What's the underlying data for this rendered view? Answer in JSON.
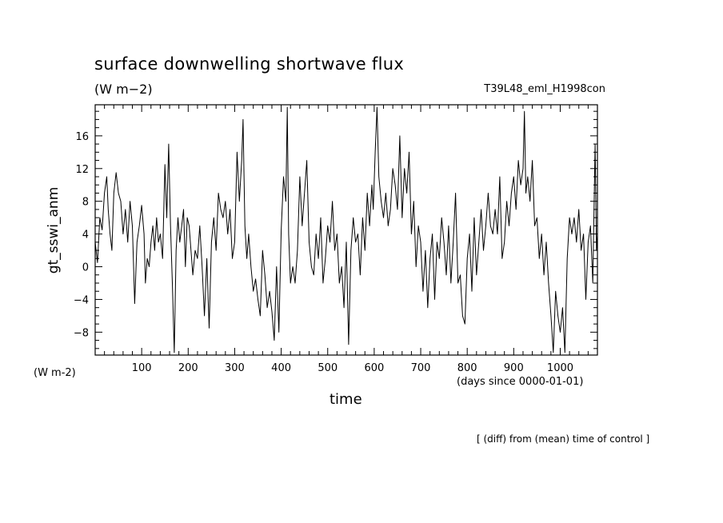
{
  "chart_data": {
    "type": "line",
    "title": "surface downwelling shortwave flux",
    "units": "(W m−2)",
    "experiment": "T39L48_eml_H1998con",
    "ylabel": "gt_sswi_anm",
    "yunit_label": "(W m-2)",
    "xlabel": "time",
    "xunit_label": "(days since 0000-01-01)",
    "note": "[ (diff) from (mean) time of control ]",
    "xlim": [
      0,
      1080
    ],
    "ylim": [
      -10.8,
      19.8
    ],
    "xticks": [
      100,
      200,
      300,
      400,
      500,
      600,
      700,
      800,
      900,
      1000
    ],
    "yticks": [
      -8,
      -4,
      0,
      4,
      8,
      12,
      16
    ],
    "grid": false,
    "series": [
      {
        "color": "#000000",
        "points": [
          [
            0,
            3
          ],
          [
            5,
            0.5
          ],
          [
            10,
            6
          ],
          [
            15,
            4.5
          ],
          [
            20,
            9
          ],
          [
            25,
            11
          ],
          [
            28,
            7
          ],
          [
            32,
            4
          ],
          [
            36,
            2
          ],
          [
            40,
            9
          ],
          [
            45,
            11.5
          ],
          [
            50,
            9
          ],
          [
            55,
            8
          ],
          [
            60,
            4
          ],
          [
            65,
            7
          ],
          [
            70,
            3
          ],
          [
            75,
            8
          ],
          [
            80,
            5
          ],
          [
            85,
            -4.5
          ],
          [
            90,
            3
          ],
          [
            95,
            5
          ],
          [
            100,
            7.5
          ],
          [
            105,
            4
          ],
          [
            108,
            -2
          ],
          [
            112,
            1
          ],
          [
            116,
            0
          ],
          [
            120,
            3
          ],
          [
            124,
            5
          ],
          [
            128,
            2
          ],
          [
            132,
            6
          ],
          [
            136,
            3
          ],
          [
            140,
            4
          ],
          [
            145,
            1
          ],
          [
            150,
            12.5
          ],
          [
            154,
            6
          ],
          [
            158,
            15
          ],
          [
            162,
            5
          ],
          [
            166,
            -2
          ],
          [
            170,
            -10.5
          ],
          [
            174,
            2
          ],
          [
            178,
            6
          ],
          [
            182,
            3
          ],
          [
            186,
            5
          ],
          [
            190,
            7
          ],
          [
            194,
            0
          ],
          [
            198,
            6
          ],
          [
            202,
            5
          ],
          [
            206,
            2
          ],
          [
            210,
            -1
          ],
          [
            215,
            2
          ],
          [
            220,
            1
          ],
          [
            225,
            5
          ],
          [
            230,
            0
          ],
          [
            235,
            -6
          ],
          [
            240,
            1
          ],
          [
            245,
            -7.5
          ],
          [
            250,
            3
          ],
          [
            255,
            6
          ],
          [
            260,
            2
          ],
          [
            265,
            9
          ],
          [
            270,
            7
          ],
          [
            275,
            6
          ],
          [
            280,
            8
          ],
          [
            285,
            4
          ],
          [
            290,
            7
          ],
          [
            295,
            1
          ],
          [
            300,
            3
          ],
          [
            305,
            14
          ],
          [
            310,
            8
          ],
          [
            315,
            13
          ],
          [
            318,
            18
          ],
          [
            322,
            5
          ],
          [
            326,
            1
          ],
          [
            330,
            4
          ],
          [
            335,
            0
          ],
          [
            340,
            -3
          ],
          [
            345,
            -1.5
          ],
          [
            350,
            -4
          ],
          [
            355,
            -6
          ],
          [
            360,
            2
          ],
          [
            365,
            -1
          ],
          [
            370,
            -5
          ],
          [
            375,
            -3
          ],
          [
            380,
            -5.5
          ],
          [
            385,
            -9
          ],
          [
            390,
            0
          ],
          [
            395,
            -8
          ],
          [
            400,
            4.5
          ],
          [
            405,
            11
          ],
          [
            410,
            8
          ],
          [
            413,
            19.5
          ],
          [
            416,
            4
          ],
          [
            420,
            -2
          ],
          [
            425,
            0
          ],
          [
            430,
            -2
          ],
          [
            435,
            2
          ],
          [
            440,
            11
          ],
          [
            445,
            5
          ],
          [
            450,
            9
          ],
          [
            455,
            13
          ],
          [
            460,
            3
          ],
          [
            465,
            0
          ],
          [
            470,
            -1
          ],
          [
            475,
            4
          ],
          [
            480,
            1
          ],
          [
            485,
            6
          ],
          [
            490,
            -2
          ],
          [
            495,
            1
          ],
          [
            500,
            5
          ],
          [
            505,
            3
          ],
          [
            510,
            8
          ],
          [
            515,
            2
          ],
          [
            520,
            4
          ],
          [
            525,
            -2
          ],
          [
            530,
            0
          ],
          [
            535,
            -5
          ],
          [
            540,
            3
          ],
          [
            545,
            -9.5
          ],
          [
            550,
            2
          ],
          [
            555,
            6
          ],
          [
            560,
            3
          ],
          [
            565,
            4
          ],
          [
            570,
            -1
          ],
          [
            575,
            6
          ],
          [
            580,
            2
          ],
          [
            585,
            9
          ],
          [
            590,
            5
          ],
          [
            595,
            10
          ],
          [
            598,
            7
          ],
          [
            602,
            14
          ],
          [
            606,
            19.5
          ],
          [
            610,
            11
          ],
          [
            615,
            8
          ],
          [
            620,
            6
          ],
          [
            625,
            9
          ],
          [
            630,
            5
          ],
          [
            635,
            7
          ],
          [
            640,
            12
          ],
          [
            645,
            10
          ],
          [
            650,
            7
          ],
          [
            655,
            16
          ],
          [
            660,
            6
          ],
          [
            665,
            12
          ],
          [
            670,
            9
          ],
          [
            675,
            14
          ],
          [
            680,
            4
          ],
          [
            685,
            8
          ],
          [
            690,
            0
          ],
          [
            695,
            5
          ],
          [
            700,
            3
          ],
          [
            705,
            -3
          ],
          [
            710,
            2
          ],
          [
            715,
            -5
          ],
          [
            720,
            1
          ],
          [
            725,
            4
          ],
          [
            730,
            -4
          ],
          [
            735,
            3
          ],
          [
            740,
            1
          ],
          [
            745,
            6
          ],
          [
            750,
            3
          ],
          [
            755,
            -1
          ],
          [
            760,
            5
          ],
          [
            765,
            -2
          ],
          [
            770,
            3
          ],
          [
            775,
            9
          ],
          [
            780,
            -2
          ],
          [
            785,
            -1
          ],
          [
            790,
            -6
          ],
          [
            795,
            -7
          ],
          [
            800,
            1
          ],
          [
            805,
            4
          ],
          [
            810,
            -3
          ],
          [
            815,
            6
          ],
          [
            820,
            -1
          ],
          [
            825,
            3
          ],
          [
            830,
            7
          ],
          [
            835,
            2
          ],
          [
            840,
            5
          ],
          [
            845,
            9
          ],
          [
            850,
            5
          ],
          [
            855,
            4
          ],
          [
            860,
            7
          ],
          [
            865,
            4
          ],
          [
            870,
            11
          ],
          [
            875,
            1
          ],
          [
            880,
            3
          ],
          [
            885,
            8
          ],
          [
            890,
            5
          ],
          [
            895,
            9
          ],
          [
            900,
            11
          ],
          [
            905,
            7
          ],
          [
            910,
            13
          ],
          [
            915,
            10
          ],
          [
            920,
            12
          ],
          [
            923,
            19
          ],
          [
            926,
            9
          ],
          [
            930,
            11
          ],
          [
            935,
            8
          ],
          [
            940,
            13
          ],
          [
            945,
            5
          ],
          [
            950,
            6
          ],
          [
            955,
            1
          ],
          [
            960,
            4
          ],
          [
            965,
            -1
          ],
          [
            970,
            3
          ],
          [
            975,
            -2
          ],
          [
            980,
            -6
          ],
          [
            985,
            -10.5
          ],
          [
            990,
            -3
          ],
          [
            995,
            -6
          ],
          [
            1000,
            -8
          ],
          [
            1005,
            -5
          ],
          [
            1010,
            -10.5
          ],
          [
            1015,
            1
          ],
          [
            1020,
            6
          ],
          [
            1025,
            4
          ],
          [
            1030,
            6
          ],
          [
            1035,
            3
          ],
          [
            1040,
            7
          ],
          [
            1045,
            2
          ],
          [
            1050,
            4
          ],
          [
            1055,
            -4
          ],
          [
            1060,
            3
          ],
          [
            1065,
            5
          ],
          [
            1070,
            -2
          ],
          [
            1075,
            15
          ],
          [
            1078,
            2
          ],
          [
            1080,
            4
          ]
        ]
      }
    ]
  }
}
